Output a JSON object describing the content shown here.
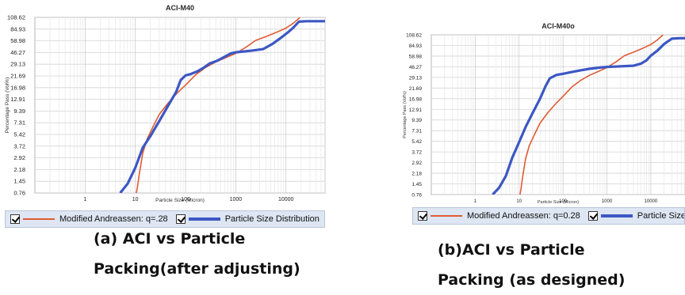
{
  "chart_data": [
    {
      "type": "line",
      "title": "ACI-M40",
      "xlabel": "Particle Size (Micron)",
      "ylabel": "Percentage Pass (Vol%)",
      "x_scale": "log",
      "xlim": [
        0.1,
        60000
      ],
      "ylim": [
        0.76,
        108.62
      ],
      "x_ticks": [
        1,
        10,
        100,
        1000,
        10000
      ],
      "x_tick_labels": [
        "1",
        "10",
        "100",
        "1000",
        "10000"
      ],
      "y_ticks": [
        0.76,
        1.45,
        2.18,
        2.92,
        3.72,
        5.42,
        7.31,
        9.39,
        12.91,
        16.98,
        21.69,
        29.13,
        46.27,
        58.98,
        84.93,
        108.62
      ],
      "y_tick_labels": [
        "0.76",
        "1.45",
        "2.18",
        "2.92",
        "3.72",
        "5.42",
        "7.31",
        "9.39",
        "12.91",
        "16.98",
        "21.69",
        "29.13",
        "46.27",
        "58.98",
        "84.93",
        "108.62"
      ],
      "grid": true,
      "legend_position": "bottom",
      "series": [
        {
          "name": "Modified Andreassen:  q=.28",
          "color": "#e05a33",
          "x": [
            10.5,
            11,
            12,
            14,
            17,
            22,
            30,
            45,
            70,
            100,
            160,
            250,
            400,
            650,
            1000,
            1600,
            2500,
            4000,
            6500,
            10000,
            14000,
            19000
          ],
          "y": [
            0.76,
            1.1,
            1.9,
            3.2,
            4.7,
            6.5,
            8.8,
            11.8,
            15.3,
            18.0,
            22.5,
            27.0,
            32.5,
            39.0,
            45.0,
            52.0,
            60.0,
            68.5,
            78.0,
            87.0,
            97.0,
            108.62
          ]
        },
        {
          "name": "Particle Size Distribution",
          "color": "#3c57c4",
          "x": [
            5,
            7,
            10,
            14,
            20,
            30,
            45,
            65,
            80,
            100,
            130,
            170,
            220,
            300,
            420,
            600,
            800,
            1000,
            1500,
            2200,
            3500,
            5500,
            8000,
            11000,
            14000,
            18000,
            25000,
            40000,
            60000
          ],
          "y": [
            0.76,
            1.3,
            2.3,
            3.6,
            5.2,
            7.6,
            11.0,
            15.5,
            20.0,
            22.0,
            23.0,
            24.5,
            26.5,
            30.0,
            34.0,
            40.0,
            45.0,
            46.5,
            47.5,
            48.5,
            50.0,
            56.0,
            66.0,
            78.0,
            88.0,
            100.0,
            101.0,
            101.0,
            101.0
          ]
        }
      ]
    },
    {
      "type": "line",
      "title": "ACI-M40o",
      "xlabel": "Particle Size (Micron)",
      "ylabel": "Percentage Pass (Vol%)",
      "x_scale": "log",
      "xlim": [
        0.1,
        60000
      ],
      "ylim": [
        0.76,
        108.62
      ],
      "x_ticks": [
        1,
        10,
        100,
        1000,
        10000
      ],
      "x_tick_labels": [
        "1",
        "10",
        "100",
        "1000",
        "10000"
      ],
      "y_ticks": [
        0.76,
        1.45,
        2.18,
        2.92,
        3.72,
        5.42,
        7.31,
        9.39,
        12.91,
        16.98,
        21.69,
        29.13,
        46.27,
        58.98,
        84.93,
        108.62
      ],
      "y_tick_labels": [
        "0.76",
        "1.45",
        "2.18",
        "2.92",
        "3.72",
        "5.42",
        "7.31",
        "9.39",
        "12.91",
        "16.98",
        "21.69",
        "29.13",
        "46.27",
        "58.98",
        "84.93",
        "108.62"
      ],
      "grid": true,
      "legend_position": "bottom",
      "series": [
        {
          "name": "Modified Andreassen:  q=0.28",
          "color": "#e05a33",
          "x": [
            10.5,
            11,
            12,
            14,
            17,
            22,
            30,
            45,
            70,
            100,
            160,
            250,
            400,
            650,
            1000,
            1600,
            2500,
            4000,
            6500,
            10000,
            14000,
            19000
          ],
          "y": [
            0.76,
            1.1,
            1.9,
            3.2,
            4.7,
            6.5,
            8.8,
            11.8,
            15.3,
            18.0,
            22.5,
            27.0,
            32.5,
            39.0,
            45.0,
            52.0,
            60.0,
            68.5,
            78.0,
            87.0,
            97.0,
            108.62
          ]
        },
        {
          "name": "Particle Size Distribution",
          "color": "#3c57c4",
          "x": [
            2.5,
            3.5,
            5,
            7,
            10,
            14,
            20,
            30,
            40,
            50,
            70,
            100,
            150,
            250,
            400,
            700,
            1000,
            1500,
            2500,
            4000,
            6000,
            8000,
            10000,
            14000,
            20000,
            30000,
            45000,
            60000
          ],
          "y": [
            0.76,
            1.2,
            2.0,
            3.3,
            5.3,
            8.0,
            11.5,
            17.0,
            23.0,
            28.5,
            33.0,
            35.0,
            37.5,
            40.5,
            43.0,
            45.0,
            46.0,
            46.5,
            47.0,
            47.5,
            50.0,
            54.0,
            60.0,
            72.0,
            88.0,
            100.0,
            101.0,
            101.0
          ]
        }
      ]
    }
  ],
  "captions": [
    {
      "line1": "(a) ACI vs Particle",
      "line2": "Packing(after adjusting)"
    },
    {
      "line1": "(b)ACI vs Particle",
      "line2": "Packing  (as designed)"
    }
  ]
}
